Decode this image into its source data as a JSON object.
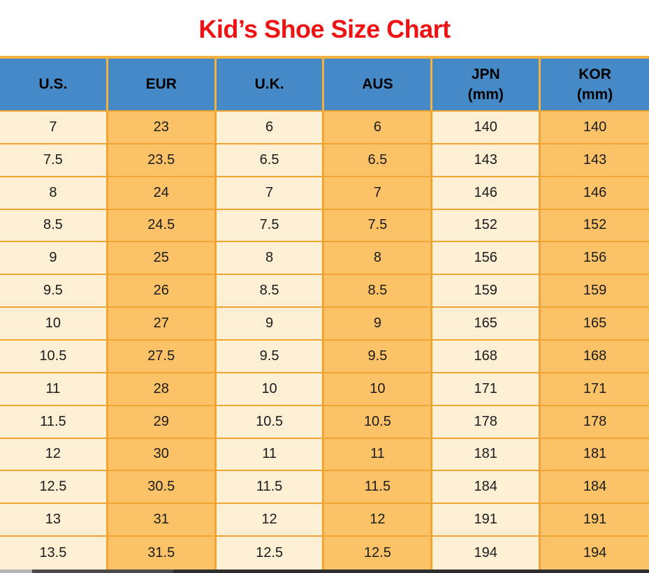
{
  "title": "Kid’s Shoe Size Chart",
  "chart_data": {
    "type": "table",
    "title": "Kid’s Shoe Size Chart",
    "columns": [
      {
        "label": "U.S.",
        "sublabel": ""
      },
      {
        "label": "EUR",
        "sublabel": ""
      },
      {
        "label": "U.K.",
        "sublabel": ""
      },
      {
        "label": "AUS",
        "sublabel": ""
      },
      {
        "label": "JPN",
        "sublabel": "(mm)"
      },
      {
        "label": "KOR",
        "sublabel": "(mm)"
      }
    ],
    "rows": [
      [
        "7",
        "23",
        "6",
        "6",
        "140",
        "140"
      ],
      [
        "7.5",
        "23.5",
        "6.5",
        "6.5",
        "143",
        "143"
      ],
      [
        "8",
        "24",
        "7",
        "7",
        "146",
        "146"
      ],
      [
        "8.5",
        "24.5",
        "7.5",
        "7.5",
        "152",
        "152"
      ],
      [
        "9",
        "25",
        "8",
        "8",
        "156",
        "156"
      ],
      [
        "9.5",
        "26",
        "8.5",
        "8.5",
        "159",
        "159"
      ],
      [
        "10",
        "27",
        "9",
        "9",
        "165",
        "165"
      ],
      [
        "10.5",
        "27.5",
        "9.5",
        "9.5",
        "168",
        "168"
      ],
      [
        "11",
        "28",
        "10",
        "10",
        "171",
        "171"
      ],
      [
        "11.5",
        "29",
        "10.5",
        "10.5",
        "178",
        "178"
      ],
      [
        "12",
        "30",
        "11",
        "11",
        "181",
        "181"
      ],
      [
        "12.5",
        "30.5",
        "11.5",
        "11.5",
        "184",
        "184"
      ],
      [
        "13",
        "31",
        "12",
        "12",
        "191",
        "191"
      ],
      [
        "13.5",
        "31.5",
        "12.5",
        "12.5",
        "194",
        "194"
      ]
    ]
  },
  "colors": {
    "title_red": "#ee1212",
    "header_blue": "#4589c6",
    "cell_light": "#fcefd4",
    "cell_orange": "#fbc267",
    "grid_orange": "#f0a532",
    "top_line": "#f3b23f",
    "cell_text": "#1b1b1b"
  }
}
